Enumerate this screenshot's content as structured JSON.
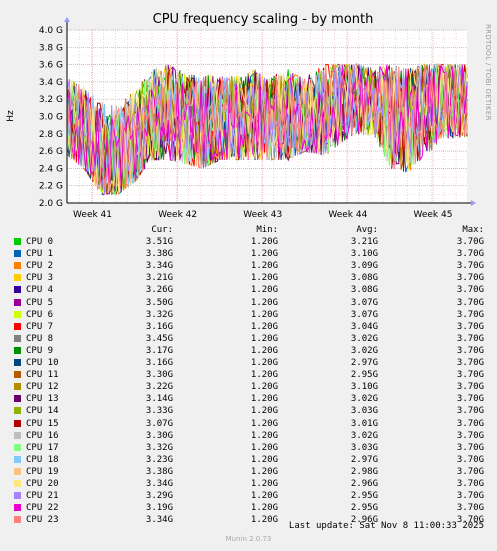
{
  "chart_data": {
    "type": "line",
    "title": "CPU frequency scaling - by month",
    "ylabel": "Hz",
    "side_label": "RRDTOOL / TOBI OETIKER",
    "yticks": [
      "2.0 G",
      "2.2 G",
      "2.4 G",
      "2.6 G",
      "2.8 G",
      "3.0 G",
      "3.2 G",
      "3.4 G",
      "3.6 G",
      "3.8 G",
      "4.0 G"
    ],
    "ylim": [
      2.0,
      4.0
    ],
    "xticks": [
      "Week 41",
      "Week 42",
      "Week 43",
      "Week 44",
      "Week 45"
    ],
    "xlim": [
      0,
      4.7
    ],
    "xtick_positions": [
      0.3,
      1.3,
      2.3,
      3.3,
      4.3
    ],
    "grid": true,
    "series_profile": {
      "x": [
        0.0,
        0.2,
        0.4,
        0.6,
        0.8,
        1.0,
        1.2,
        1.4,
        1.6,
        1.8,
        2.0,
        2.2,
        2.4,
        2.6,
        2.8,
        3.0,
        3.2,
        3.4,
        3.6,
        3.8,
        4.0,
        4.2,
        4.4,
        4.6
      ],
      "mean": [
        2.95,
        2.8,
        2.6,
        2.55,
        2.7,
        3.0,
        3.05,
        2.95,
        2.9,
        2.95,
        2.95,
        3.0,
        2.95,
        3.0,
        3.0,
        3.05,
        3.2,
        3.25,
        3.15,
        3.0,
        2.95,
        3.1,
        3.2,
        3.2
      ],
      "min": [
        2.55,
        2.4,
        2.1,
        2.1,
        2.25,
        2.5,
        2.5,
        2.45,
        2.4,
        2.5,
        2.5,
        2.5,
        2.5,
        2.5,
        2.6,
        2.55,
        2.6,
        2.75,
        2.8,
        2.4,
        2.35,
        2.5,
        2.7,
        2.75
      ],
      "max": [
        3.5,
        3.45,
        3.2,
        3.25,
        3.4,
        3.55,
        3.6,
        3.5,
        3.5,
        3.55,
        3.5,
        3.55,
        3.5,
        3.55,
        3.5,
        3.6,
        3.6,
        3.6,
        3.6,
        3.6,
        3.55,
        3.6,
        3.6,
        3.6
      ]
    }
  },
  "legend": {
    "headers": {
      "cur": "Cur:",
      "min": "Min:",
      "avg": "Avg:",
      "max": "Max:"
    },
    "rows": [
      {
        "name": "CPU 0",
        "color": "#00cc00",
        "cur": "3.51G",
        "min": "1.20G",
        "avg": "3.21G",
        "max": "3.70G"
      },
      {
        "name": "CPU 1",
        "color": "#0066b3",
        "cur": "3.38G",
        "min": "1.20G",
        "avg": "3.10G",
        "max": "3.70G"
      },
      {
        "name": "CPU 2",
        "color": "#ff8000",
        "cur": "3.34G",
        "min": "1.20G",
        "avg": "3.09G",
        "max": "3.70G"
      },
      {
        "name": "CPU 3",
        "color": "#ffcc00",
        "cur": "3.21G",
        "min": "1.20G",
        "avg": "3.08G",
        "max": "3.70G"
      },
      {
        "name": "CPU 4",
        "color": "#330099",
        "cur": "3.26G",
        "min": "1.20G",
        "avg": "3.08G",
        "max": "3.70G"
      },
      {
        "name": "CPU 5",
        "color": "#990099",
        "cur": "3.50G",
        "min": "1.20G",
        "avg": "3.07G",
        "max": "3.70G"
      },
      {
        "name": "CPU 6",
        "color": "#ccff00",
        "cur": "3.32G",
        "min": "1.20G",
        "avg": "3.07G",
        "max": "3.70G"
      },
      {
        "name": "CPU 7",
        "color": "#ff0000",
        "cur": "3.16G",
        "min": "1.20G",
        "avg": "3.04G",
        "max": "3.70G"
      },
      {
        "name": "CPU 8",
        "color": "#808080",
        "cur": "3.45G",
        "min": "1.20G",
        "avg": "3.02G",
        "max": "3.70G"
      },
      {
        "name": "CPU 9",
        "color": "#008f00",
        "cur": "3.17G",
        "min": "1.20G",
        "avg": "3.02G",
        "max": "3.70G"
      },
      {
        "name": "CPU 10",
        "color": "#00487d",
        "cur": "3.16G",
        "min": "1.20G",
        "avg": "2.97G",
        "max": "3.70G"
      },
      {
        "name": "CPU 11",
        "color": "#b35a00",
        "cur": "3.30G",
        "min": "1.20G",
        "avg": "2.95G",
        "max": "3.70G"
      },
      {
        "name": "CPU 12",
        "color": "#b38f00",
        "cur": "3.22G",
        "min": "1.20G",
        "avg": "3.10G",
        "max": "3.70G"
      },
      {
        "name": "CPU 13",
        "color": "#6b006b",
        "cur": "3.14G",
        "min": "1.20G",
        "avg": "3.02G",
        "max": "3.70G"
      },
      {
        "name": "CPU 14",
        "color": "#8fb300",
        "cur": "3.33G",
        "min": "1.20G",
        "avg": "3.03G",
        "max": "3.70G"
      },
      {
        "name": "CPU 15",
        "color": "#b30000",
        "cur": "3.07G",
        "min": "1.20G",
        "avg": "3.01G",
        "max": "3.70G"
      },
      {
        "name": "CPU 16",
        "color": "#bebebe",
        "cur": "3.30G",
        "min": "1.20G",
        "avg": "3.02G",
        "max": "3.70G"
      },
      {
        "name": "CPU 17",
        "color": "#80ff80",
        "cur": "3.32G",
        "min": "1.20G",
        "avg": "3.03G",
        "max": "3.70G"
      },
      {
        "name": "CPU 18",
        "color": "#80c9ff",
        "cur": "3.23G",
        "min": "1.20G",
        "avg": "2.97G",
        "max": "3.70G"
      },
      {
        "name": "CPU 19",
        "color": "#ffc080",
        "cur": "3.38G",
        "min": "1.20G",
        "avg": "2.98G",
        "max": "3.70G"
      },
      {
        "name": "CPU 20",
        "color": "#ffe680",
        "cur": "3.34G",
        "min": "1.20G",
        "avg": "2.96G",
        "max": "3.70G"
      },
      {
        "name": "CPU 21",
        "color": "#aa80ff",
        "cur": "3.29G",
        "min": "1.20G",
        "avg": "2.95G",
        "max": "3.70G"
      },
      {
        "name": "CPU 22",
        "color": "#ee00cc",
        "cur": "3.19G",
        "min": "1.20G",
        "avg": "2.95G",
        "max": "3.70G"
      },
      {
        "name": "CPU 23",
        "color": "#ff8080",
        "cur": "3.34G",
        "min": "1.20G",
        "avg": "2.96G",
        "max": "3.70G"
      }
    ]
  },
  "footer": {
    "last_update": "Last update:  Sat Nov  8 11:00:33 2025",
    "munin_version": "Munin 2.0.73"
  }
}
